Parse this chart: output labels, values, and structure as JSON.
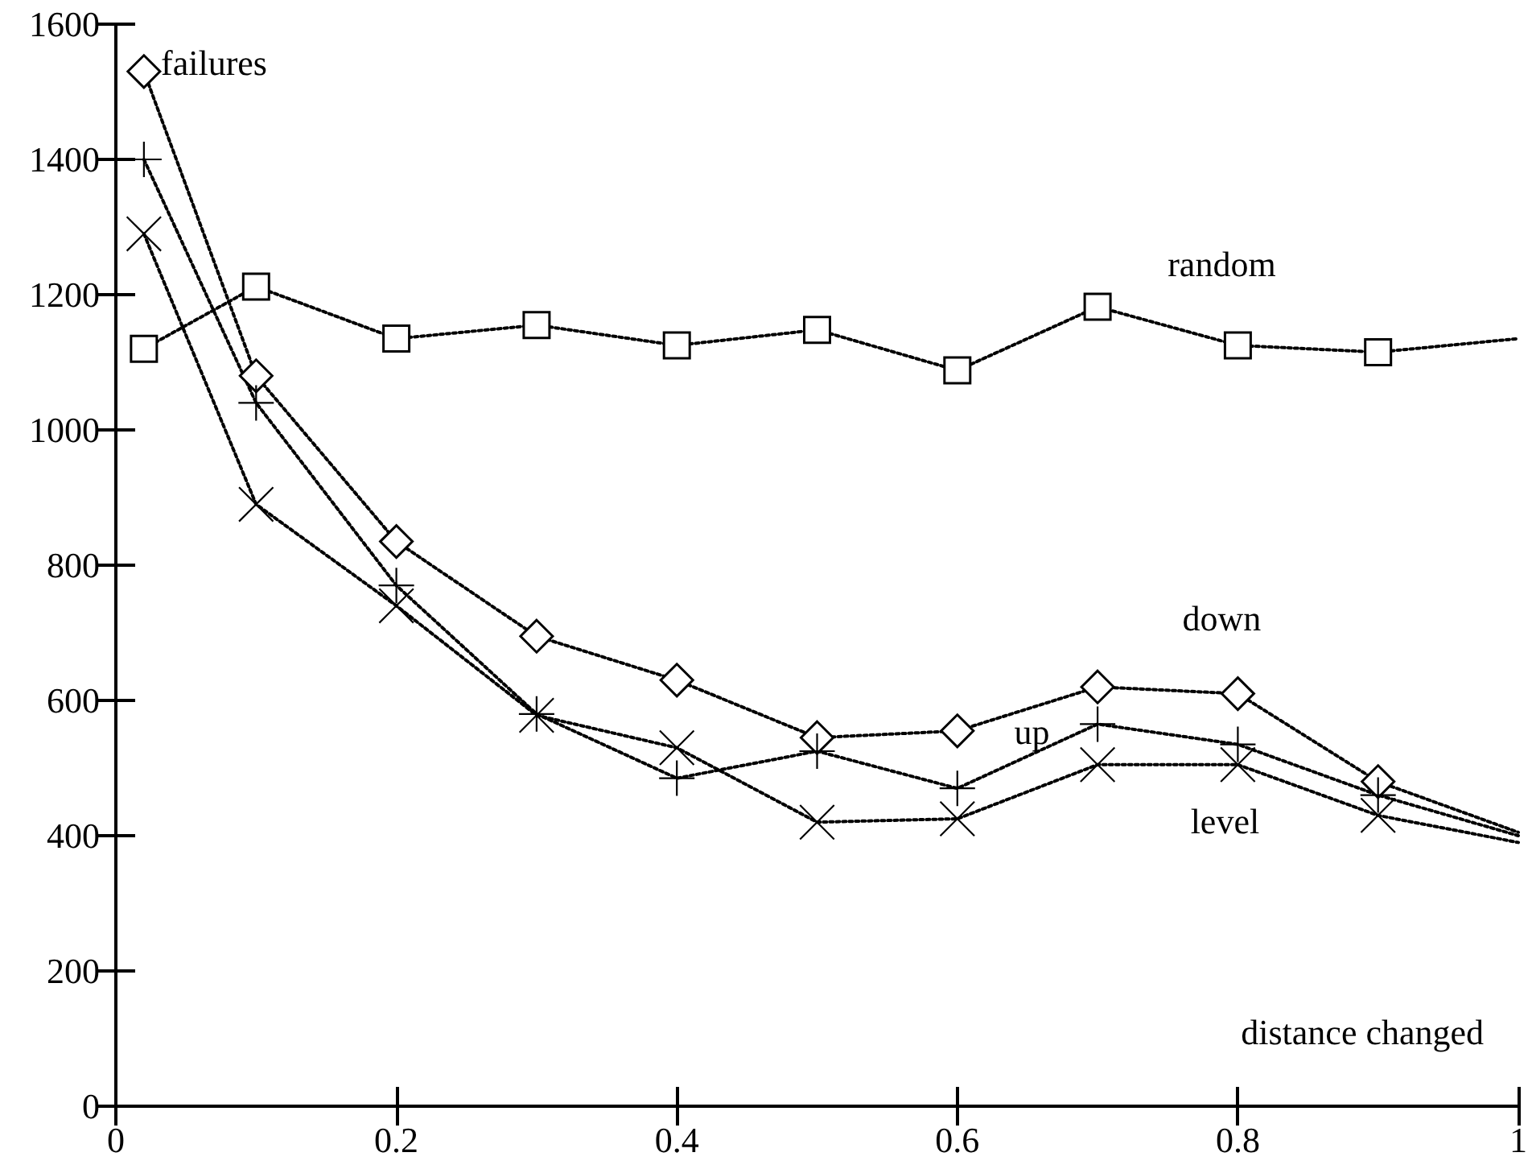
{
  "chart_data": {
    "type": "line",
    "xlabel": "distance changed",
    "ylabel": "failures",
    "xlim": [
      0,
      1
    ],
    "xticks": [
      0,
      0.2,
      0.4,
      0.6,
      0.8,
      1
    ],
    "ylim": [
      0,
      1600
    ],
    "yticks": [
      0,
      200,
      400,
      600,
      800,
      1000,
      1200,
      1400,
      1600
    ],
    "x": [
      0.02,
      0.1,
      0.2,
      0.3,
      0.4,
      0.5,
      0.6,
      0.7,
      0.8,
      0.9,
      1
    ],
    "grid": false,
    "legend": false,
    "line_style": "dotted",
    "series": [
      {
        "name": "random",
        "color": "#000000",
        "marker": "square",
        "values": [
          1120,
          1212,
          1135,
          1155,
          1125,
          1148,
          1088,
          1182,
          1125,
          1115,
          1135
        ]
      },
      {
        "name": "down",
        "color": "#000000",
        "marker": "diamond",
        "values": [
          1530,
          1080,
          835,
          695,
          630,
          545,
          555,
          620,
          610,
          480,
          405
        ]
      },
      {
        "name": "up",
        "color": "#000000",
        "marker": "cross",
        "values": [
          1400,
          1040,
          770,
          580,
          485,
          525,
          470,
          565,
          535,
          460,
          400
        ]
      },
      {
        "name": "level",
        "color": "#000000",
        "marker": "cross",
        "values": [
          1290,
          890,
          740,
          578,
          530,
          420,
          425,
          505,
          505,
          430,
          390
        ]
      }
    ]
  }
}
